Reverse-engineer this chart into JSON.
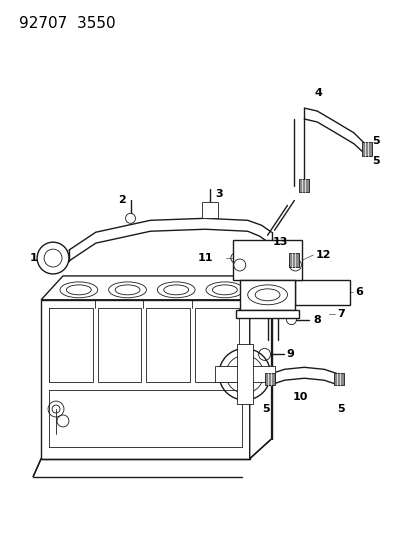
{
  "title": "92707  3550",
  "bg_color": "#ffffff",
  "line_color": "#1a1a1a",
  "label_color": "#000000",
  "figsize": [
    4.14,
    5.33
  ],
  "dpi": 100,
  "lw_main": 1.0,
  "lw_thin": 0.6,
  "lw_thick": 1.5
}
